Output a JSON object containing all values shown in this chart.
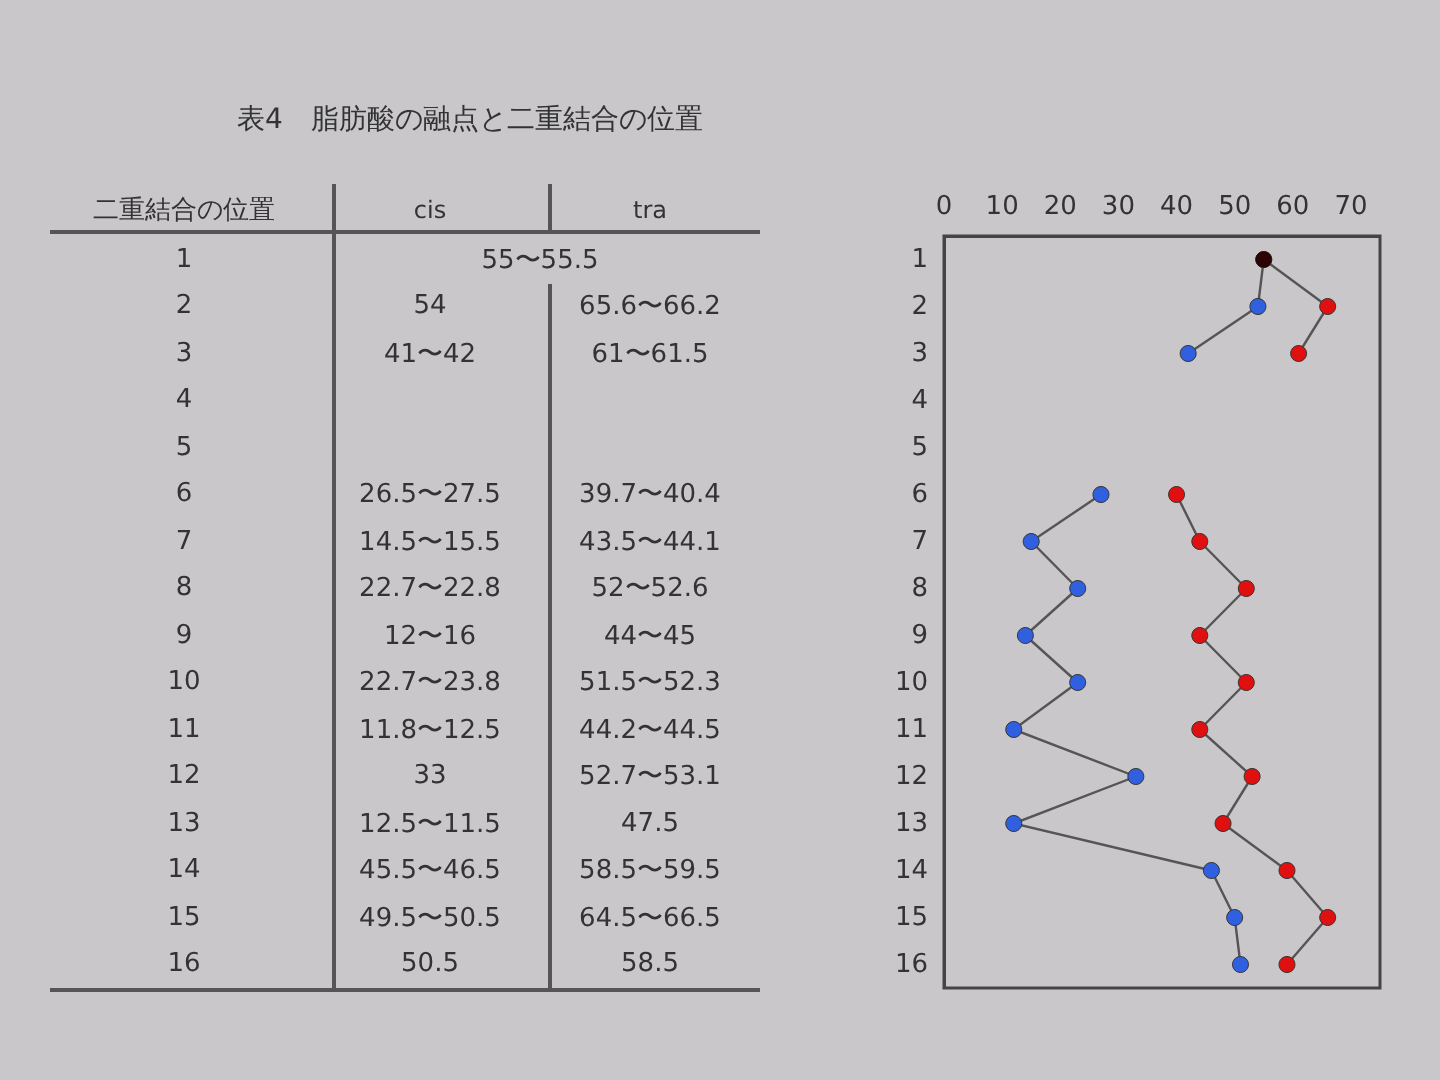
{
  "chart_data": {
    "type": "line",
    "title": "表4　脂肪酸の融点と二重結合の位置",
    "orientation": "horizontal",
    "categories": [
      "1",
      "2",
      "3",
      "4",
      "5",
      "6",
      "7",
      "8",
      "9",
      "10",
      "11",
      "12",
      "13",
      "14",
      "15",
      "16"
    ],
    "series": [
      {
        "color": "#3060e0",
        "values": [
          55,
          54,
          42,
          null,
          null,
          27,
          15,
          23,
          14,
          23,
          12,
          33,
          12,
          46,
          50,
          51
        ]
      },
      {
        "color": "#e01010",
        "values": [
          55,
          66,
          61,
          null,
          null,
          40,
          44,
          52,
          44,
          52,
          44,
          53,
          48,
          59,
          66,
          59
        ]
      },
      {
        "type": "scatter",
        "color": "#000000",
        "values": [
          55,
          null,
          null,
          null,
          null,
          null,
          null,
          null,
          null,
          null,
          null,
          null,
          null,
          null,
          null,
          null
        ]
      }
    ],
    "annotations": [
      "二重結合の位置",
      "cis",
      "tra",
      "55〜55.5",
      "54",
      "65.6〜66.2",
      "41〜42",
      "61〜61.5",
      "26.5〜27.5",
      "39.7〜40.4",
      "14.5〜15.5",
      "43.5〜44.1",
      "22.7〜22.8",
      "52〜52.6",
      "12〜16",
      "44〜45",
      "22.7〜23.8",
      "51.5〜52.3",
      "11.8〜12.5",
      "44.2〜44.5",
      "33",
      "52.7〜53.1",
      "12.5〜11.5",
      "47.5",
      "45.5〜46.5",
      "58.5〜59.5",
      "49.5〜50.5",
      "64.5〜66.5",
      "50.5",
      "58.5"
    ],
    "xlim": [
      0,
      75
    ],
    "xticks": [
      0,
      10,
      20,
      30,
      40,
      50,
      60,
      70
    ],
    "grid": false,
    "marker": "circle",
    "line_style": "solid"
  }
}
